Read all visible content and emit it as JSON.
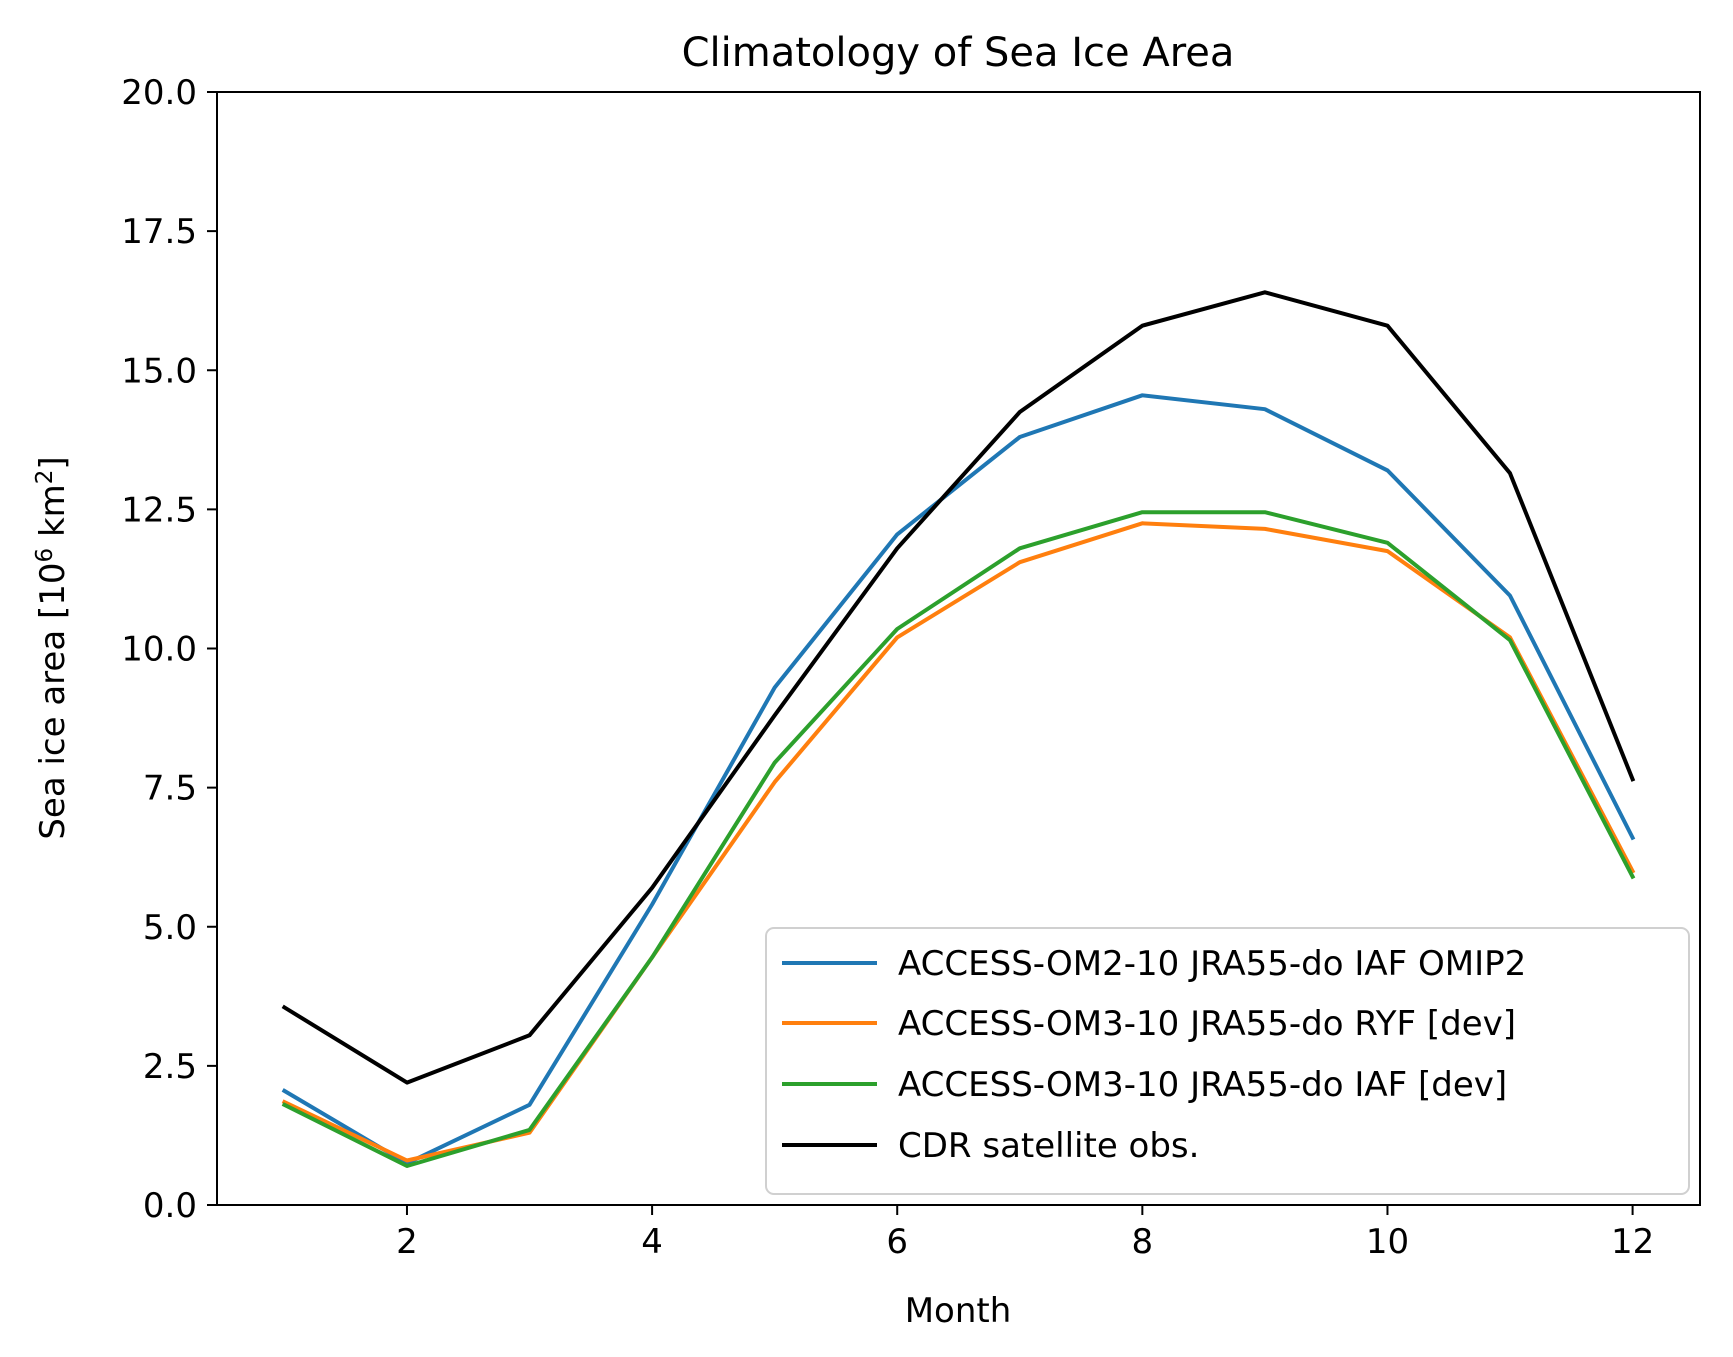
{
  "chart_data": {
    "type": "line",
    "title": "Climatology of Sea Ice Area",
    "xlabel": "Month",
    "ylabel_prefix": "Sea ice area [10",
    "ylabel_exp1": "6",
    "ylabel_mid": " km",
    "ylabel_exp2": "2",
    "ylabel_suffix": "]",
    "x": [
      1,
      2,
      3,
      4,
      5,
      6,
      7,
      8,
      9,
      10,
      11,
      12
    ],
    "xlim": [
      0.45,
      12.55
    ],
    "ylim": [
      0,
      20
    ],
    "xticks": [
      2,
      4,
      6,
      8,
      10,
      12
    ],
    "xtick_labels": [
      "2",
      "4",
      "6",
      "8",
      "10",
      "12"
    ],
    "yticks": [
      0,
      2.5,
      5,
      7.5,
      10,
      12.5,
      15,
      17.5,
      20
    ],
    "ytick_labels": [
      "0.0",
      "2.5",
      "5.0",
      "7.5",
      "10.0",
      "12.5",
      "15.0",
      "17.5",
      "20.0"
    ],
    "grid": false,
    "legend_position": "lower-right",
    "series": [
      {
        "name": "ACCESS-OM2-10 JRA55-do IAF OMIP2",
        "color": "#1f77b4",
        "values": [
          2.05,
          0.75,
          1.8,
          5.4,
          9.3,
          12.05,
          13.8,
          14.55,
          14.3,
          13.2,
          10.95,
          6.6
        ]
      },
      {
        "name": "ACCESS-OM3-10 JRA55-do RYF [dev]",
        "color": "#ff7f0e",
        "values": [
          1.85,
          0.8,
          1.3,
          4.45,
          7.6,
          10.2,
          11.55,
          12.25,
          12.15,
          11.75,
          10.2,
          6.0
        ]
      },
      {
        "name": "ACCESS-OM3-10 JRA55-do IAF [dev]",
        "color": "#2ca02c",
        "values": [
          1.8,
          0.7,
          1.35,
          4.45,
          7.95,
          10.35,
          11.8,
          12.45,
          12.45,
          11.9,
          10.15,
          5.9
        ]
      },
      {
        "name": "CDR satellite obs.",
        "color": "#000000",
        "values": [
          3.55,
          2.2,
          3.05,
          5.7,
          8.8,
          11.8,
          14.25,
          15.8,
          16.4,
          15.8,
          13.15,
          7.65
        ]
      }
    ]
  }
}
